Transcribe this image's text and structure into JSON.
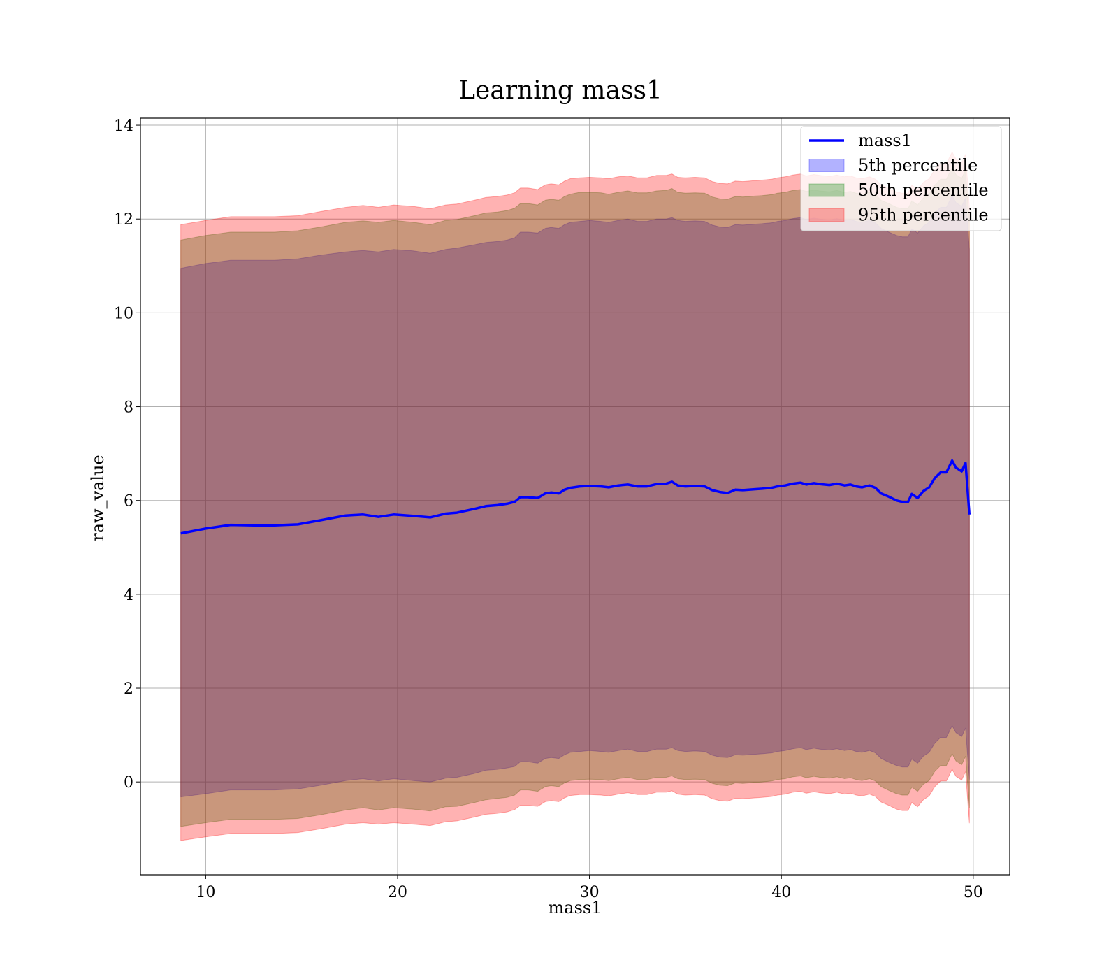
{
  "chart_data": {
    "type": "area",
    "title": "Learning mass1",
    "xlabel": "mass1",
    "ylabel": "raw_value",
    "xlim": [
      6.6,
      51.9
    ],
    "ylim": [
      -1.98,
      14.15
    ],
    "xticks": [
      10,
      20,
      30,
      40,
      50
    ],
    "yticks": [
      0,
      2,
      4,
      6,
      8,
      10,
      12,
      14
    ],
    "grid": true,
    "legend_position": "upper right",
    "legend": [
      "mass1",
      "5th percentile",
      "50th percentile",
      "95th percentile"
    ],
    "x": [
      8.7,
      10.0,
      11.3,
      12.5,
      13.6,
      14.8,
      16.0,
      17.3,
      18.2,
      19.0,
      19.8,
      20.8,
      21.7,
      22.5,
      23.1,
      24.0,
      24.6,
      25.2,
      25.7,
      26.1,
      26.4,
      26.8,
      27.3,
      27.7,
      28.0,
      28.4,
      28.7,
      29.0,
      29.5,
      30.0,
      30.6,
      31.0,
      31.5,
      32.0,
      32.5,
      33.0,
      33.5,
      34.0,
      34.3,
      34.6,
      35.0,
      35.5,
      36.0,
      36.4,
      36.8,
      37.2,
      37.6,
      38.0,
      38.6,
      39.0,
      39.5,
      39.8,
      40.2,
      40.6,
      41.0,
      41.3,
      41.7,
      42.0,
      42.5,
      42.9,
      43.3,
      43.6,
      43.9,
      44.2,
      44.6,
      44.9,
      45.2,
      45.6,
      46.0,
      46.3,
      46.6,
      46.8,
      47.1,
      47.4,
      47.7,
      48.0,
      48.3,
      48.6,
      48.9,
      49.1,
      49.4,
      49.6,
      49.8
    ],
    "series": [
      {
        "name": "mass1",
        "role": "line",
        "color": "#0000ff",
        "values": [
          5.3,
          5.4,
          5.48,
          5.47,
          5.47,
          5.49,
          5.58,
          5.68,
          5.7,
          5.65,
          5.7,
          5.67,
          5.64,
          5.72,
          5.74,
          5.82,
          5.88,
          5.9,
          5.93,
          5.97,
          6.07,
          6.07,
          6.05,
          6.15,
          6.17,
          6.15,
          6.23,
          6.27,
          6.3,
          6.31,
          6.3,
          6.28,
          6.32,
          6.34,
          6.3,
          6.3,
          6.35,
          6.36,
          6.4,
          6.32,
          6.3,
          6.31,
          6.3,
          6.22,
          6.18,
          6.16,
          6.23,
          6.22,
          6.24,
          6.25,
          6.27,
          6.3,
          6.32,
          6.36,
          6.38,
          6.34,
          6.37,
          6.35,
          6.33,
          6.36,
          6.32,
          6.34,
          6.3,
          6.28,
          6.32,
          6.27,
          6.15,
          6.08,
          6.0,
          5.97,
          5.97,
          6.14,
          6.05,
          6.2,
          6.28,
          6.48,
          6.6,
          6.6,
          6.85,
          6.7,
          6.62,
          6.8,
          5.7
        ]
      },
      {
        "name": "5th percentile",
        "color": "#0000ff",
        "upper": [
          10.95,
          11.05,
          11.12,
          11.12,
          11.12,
          11.15,
          11.23,
          11.3,
          11.33,
          11.3,
          11.35,
          11.32,
          11.27,
          11.35,
          11.38,
          11.45,
          11.5,
          11.52,
          11.55,
          11.6,
          11.72,
          11.72,
          11.7,
          11.8,
          11.82,
          11.8,
          11.88,
          11.93,
          11.95,
          11.97,
          11.95,
          11.93,
          11.97,
          12.0,
          11.95,
          11.95,
          12.0,
          12.0,
          12.03,
          11.97,
          11.95,
          11.96,
          11.95,
          11.87,
          11.83,
          11.82,
          11.88,
          11.87,
          11.89,
          11.9,
          11.92,
          11.95,
          11.97,
          12.01,
          12.03,
          11.99,
          12.02,
          12.0,
          11.98,
          12.01,
          11.97,
          11.99,
          11.95,
          11.93,
          11.97,
          11.92,
          11.8,
          11.72,
          11.65,
          11.62,
          11.62,
          11.79,
          11.7,
          11.85,
          11.93,
          12.13,
          12.25,
          12.25,
          12.5,
          12.35,
          12.27,
          12.45,
          11.35
        ],
        "lower": [
          -0.32,
          -0.25,
          -0.17,
          -0.17,
          -0.17,
          -0.15,
          -0.07,
          0.03,
          0.07,
          0.02,
          0.07,
          0.03,
          0.0,
          0.08,
          0.1,
          0.18,
          0.25,
          0.27,
          0.3,
          0.33,
          0.43,
          0.43,
          0.4,
          0.5,
          0.52,
          0.5,
          0.58,
          0.63,
          0.65,
          0.67,
          0.65,
          0.63,
          0.67,
          0.7,
          0.65,
          0.65,
          0.7,
          0.7,
          0.73,
          0.67,
          0.65,
          0.66,
          0.65,
          0.57,
          0.53,
          0.52,
          0.58,
          0.57,
          0.59,
          0.6,
          0.62,
          0.65,
          0.67,
          0.71,
          0.73,
          0.69,
          0.72,
          0.7,
          0.68,
          0.71,
          0.67,
          0.69,
          0.65,
          0.63,
          0.67,
          0.62,
          0.5,
          0.42,
          0.35,
          0.32,
          0.32,
          0.49,
          0.4,
          0.55,
          0.63,
          0.83,
          0.95,
          0.95,
          1.2,
          1.05,
          0.97,
          1.15,
          0.05
        ]
      },
      {
        "name": "50th percentile",
        "color": "#008000",
        "upper": [
          11.55,
          11.65,
          11.72,
          11.72,
          11.72,
          11.75,
          11.83,
          11.93,
          11.96,
          11.93,
          11.97,
          11.93,
          11.88,
          11.97,
          11.99,
          12.07,
          12.13,
          12.15,
          12.18,
          12.23,
          12.33,
          12.33,
          12.3,
          12.4,
          12.42,
          12.4,
          12.48,
          12.53,
          12.57,
          12.57,
          12.56,
          12.53,
          12.57,
          12.6,
          12.56,
          12.56,
          12.6,
          12.61,
          12.65,
          12.57,
          12.55,
          12.56,
          12.55,
          12.47,
          12.43,
          12.42,
          12.48,
          12.47,
          12.49,
          12.5,
          12.52,
          12.55,
          12.57,
          12.61,
          12.63,
          12.59,
          12.62,
          12.6,
          12.58,
          12.61,
          12.57,
          12.59,
          12.55,
          12.53,
          12.57,
          12.52,
          12.4,
          12.33,
          12.25,
          12.22,
          12.22,
          12.39,
          12.3,
          12.45,
          12.53,
          12.73,
          12.85,
          12.85,
          13.1,
          12.95,
          12.87,
          13.05,
          11.95
        ],
        "lower": [
          -0.95,
          -0.87,
          -0.8,
          -0.8,
          -0.8,
          -0.78,
          -0.7,
          -0.6,
          -0.55,
          -0.6,
          -0.55,
          -0.58,
          -0.62,
          -0.53,
          -0.52,
          -0.44,
          -0.38,
          -0.35,
          -0.33,
          -0.28,
          -0.17,
          -0.17,
          -0.2,
          -0.1,
          -0.08,
          -0.1,
          -0.02,
          0.03,
          0.05,
          0.06,
          0.05,
          0.03,
          0.07,
          0.1,
          0.05,
          0.05,
          0.1,
          0.1,
          0.13,
          0.07,
          0.05,
          0.06,
          0.05,
          -0.03,
          -0.07,
          -0.08,
          -0.02,
          -0.03,
          -0.01,
          0.0,
          0.02,
          0.05,
          0.07,
          0.11,
          0.13,
          0.09,
          0.12,
          0.1,
          0.08,
          0.11,
          0.07,
          0.09,
          0.05,
          0.03,
          0.07,
          0.02,
          -0.1,
          -0.18,
          -0.25,
          -0.28,
          -0.28,
          -0.11,
          -0.2,
          -0.05,
          0.03,
          0.23,
          0.35,
          0.35,
          0.6,
          0.45,
          0.37,
          0.55,
          -0.55
        ]
      },
      {
        "name": "95th percentile",
        "color": "#ff0000",
        "upper": [
          11.88,
          11.97,
          12.05,
          12.05,
          12.05,
          12.07,
          12.16,
          12.25,
          12.29,
          12.25,
          12.3,
          12.27,
          12.22,
          12.3,
          12.32,
          12.4,
          12.46,
          12.48,
          12.51,
          12.56,
          12.66,
          12.66,
          12.63,
          12.73,
          12.75,
          12.73,
          12.81,
          12.86,
          12.88,
          12.89,
          12.88,
          12.86,
          12.9,
          12.92,
          12.88,
          12.88,
          12.93,
          12.93,
          12.96,
          12.89,
          12.88,
          12.89,
          12.88,
          12.8,
          12.76,
          12.75,
          12.81,
          12.8,
          12.82,
          12.83,
          12.85,
          12.88,
          12.9,
          12.94,
          12.96,
          12.92,
          12.95,
          12.93,
          12.91,
          12.94,
          12.9,
          12.92,
          12.88,
          12.86,
          12.9,
          12.85,
          12.73,
          12.65,
          12.58,
          12.55,
          12.55,
          12.72,
          12.63,
          12.78,
          12.86,
          13.06,
          13.18,
          13.18,
          13.43,
          13.28,
          13.2,
          13.38,
          12.28
        ],
        "lower": [
          -1.25,
          -1.17,
          -1.1,
          -1.1,
          -1.1,
          -1.08,
          -1.0,
          -0.9,
          -0.87,
          -0.9,
          -0.87,
          -0.9,
          -0.93,
          -0.85,
          -0.83,
          -0.75,
          -0.69,
          -0.67,
          -0.64,
          -0.59,
          -0.5,
          -0.5,
          -0.52,
          -0.42,
          -0.4,
          -0.42,
          -0.34,
          -0.29,
          -0.27,
          -0.27,
          -0.28,
          -0.3,
          -0.26,
          -0.23,
          -0.27,
          -0.27,
          -0.22,
          -0.22,
          -0.19,
          -0.26,
          -0.28,
          -0.27,
          -0.28,
          -0.36,
          -0.4,
          -0.41,
          -0.35,
          -0.36,
          -0.34,
          -0.33,
          -0.31,
          -0.28,
          -0.26,
          -0.22,
          -0.2,
          -0.24,
          -0.21,
          -0.23,
          -0.25,
          -0.22,
          -0.26,
          -0.24,
          -0.28,
          -0.3,
          -0.26,
          -0.31,
          -0.43,
          -0.5,
          -0.58,
          -0.61,
          -0.61,
          -0.44,
          -0.53,
          -0.38,
          -0.3,
          -0.1,
          0.02,
          0.02,
          0.27,
          0.12,
          0.04,
          0.22,
          -0.88
        ]
      }
    ]
  }
}
